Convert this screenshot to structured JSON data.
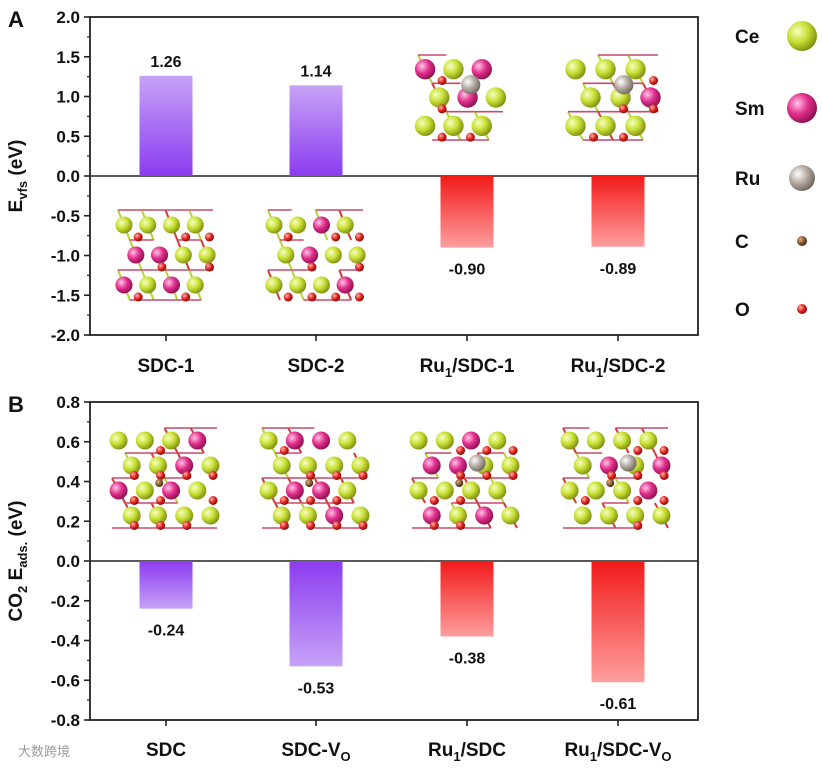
{
  "colors": {
    "purple_top": "#c7a2f6",
    "purple_bottom": "#8b3cf0",
    "red_top": "#ff9e9e",
    "red_bottom": "#f21a1a",
    "ce": "#c9e035",
    "sm": "#e2308d",
    "ru": "#b5aca3",
    "c": "#8a5a32",
    "o": "#e0221c"
  },
  "legend": [
    {
      "label": "Ce",
      "color": "#c9e035"
    },
    {
      "label": "Sm",
      "color": "#e2308d"
    },
    {
      "label": "Ru",
      "color": "#b5aca3"
    },
    {
      "label": "C",
      "color": "#8a5a32"
    },
    {
      "label": "O",
      "color": "#e0221c"
    }
  ],
  "watermark": "大数跨境",
  "chart_data": [
    {
      "panel_label": "A",
      "type": "bar",
      "ylabel_main": "E",
      "ylabel_sub": "vfs",
      "ylabel_unit": " (eV)",
      "ylim": [
        -2.0,
        2.0
      ],
      "yticks": [
        "2.0",
        "1.5",
        "1.0",
        "0.5",
        "0.0",
        "-0.5",
        "-1.0",
        "-1.5",
        "-2.0"
      ],
      "categories": [
        {
          "main": "SDC-1",
          "sub": "",
          "tail": ""
        },
        {
          "main": "SDC-2",
          "sub": "",
          "tail": ""
        },
        {
          "main": "Ru",
          "sub": "1",
          "tail": "/SDC-1"
        },
        {
          "main": "Ru",
          "sub": "1",
          "tail": "/SDC-2"
        }
      ],
      "values": [
        1.26,
        1.14,
        -0.9,
        -0.89
      ],
      "value_labels": [
        "1.26",
        "1.14",
        "-0.90",
        "-0.89"
      ],
      "bar_colors": [
        "purple",
        "purple",
        "red",
        "red"
      ]
    },
    {
      "panel_label": "B",
      "type": "bar",
      "ylabel_pre": "CO",
      "ylabel_pre_sub": "2",
      "ylabel_main": " E",
      "ylabel_sub": "ads.",
      "ylabel_unit": " (eV)",
      "ylim": [
        -0.8,
        0.8
      ],
      "yticks": [
        "0.8",
        "0.6",
        "0.4",
        "0.2",
        "0.0",
        "-0.2",
        "-0.4",
        "-0.6",
        "-0.8"
      ],
      "categories": [
        {
          "main": "SDC",
          "sub": "",
          "tail": ""
        },
        {
          "main": "SDC-V",
          "sub": "O",
          "tail": ""
        },
        {
          "main": "Ru",
          "sub": "1",
          "tail": "/SDC"
        },
        {
          "main": "Ru",
          "sub": "1",
          "tail": "/SDC-V",
          "sub2": "O"
        }
      ],
      "values": [
        -0.24,
        -0.53,
        -0.38,
        -0.61
      ],
      "value_labels": [
        "-0.24",
        "-0.53",
        "-0.38",
        "-0.61"
      ],
      "bar_colors": [
        "purple",
        "purple",
        "red",
        "red"
      ]
    }
  ]
}
